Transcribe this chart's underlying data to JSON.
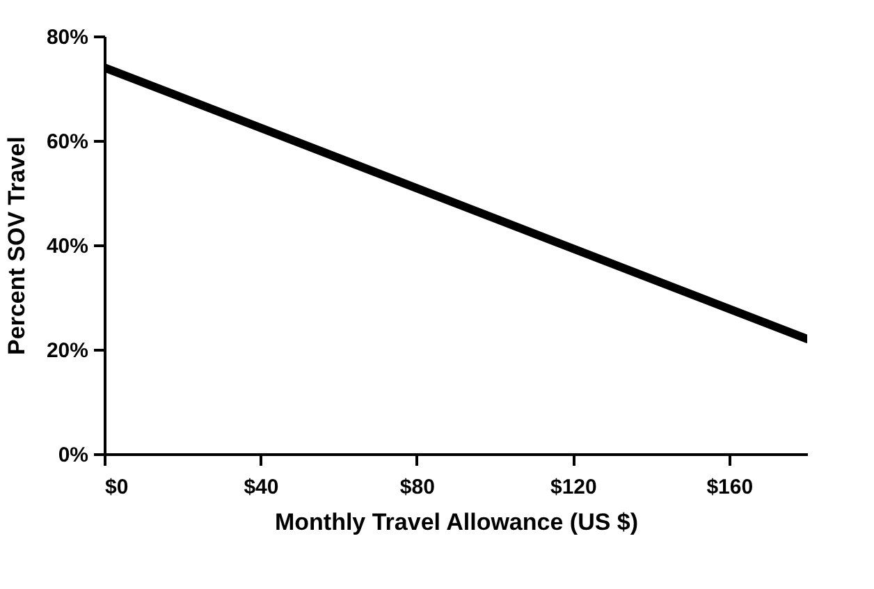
{
  "chart_data": {
    "type": "line",
    "xlabel": "Monthly Travel Allowance (US $)",
    "ylabel": "Percent SOV Travel",
    "x": [
      0,
      180
    ],
    "series": [
      {
        "color": "#000000",
        "values": [
          74,
          22
        ]
      }
    ],
    "xlim": [
      0,
      180
    ],
    "ylim": [
      0,
      80
    ],
    "xticks": [
      {
        "value": 0,
        "label": "$0"
      },
      {
        "value": 40,
        "label": "$40"
      },
      {
        "value": 80,
        "label": "$80"
      },
      {
        "value": 120,
        "label": "$120"
      },
      {
        "value": 160,
        "label": "$160"
      }
    ],
    "yticks": [
      {
        "value": 0,
        "label": "0%"
      },
      {
        "value": 20,
        "label": "20%"
      },
      {
        "value": 40,
        "label": "40%"
      },
      {
        "value": 60,
        "label": "60%"
      },
      {
        "value": 80,
        "label": "80%"
      }
    ],
    "grid": false,
    "marker": "none",
    "line_style": "solid"
  }
}
